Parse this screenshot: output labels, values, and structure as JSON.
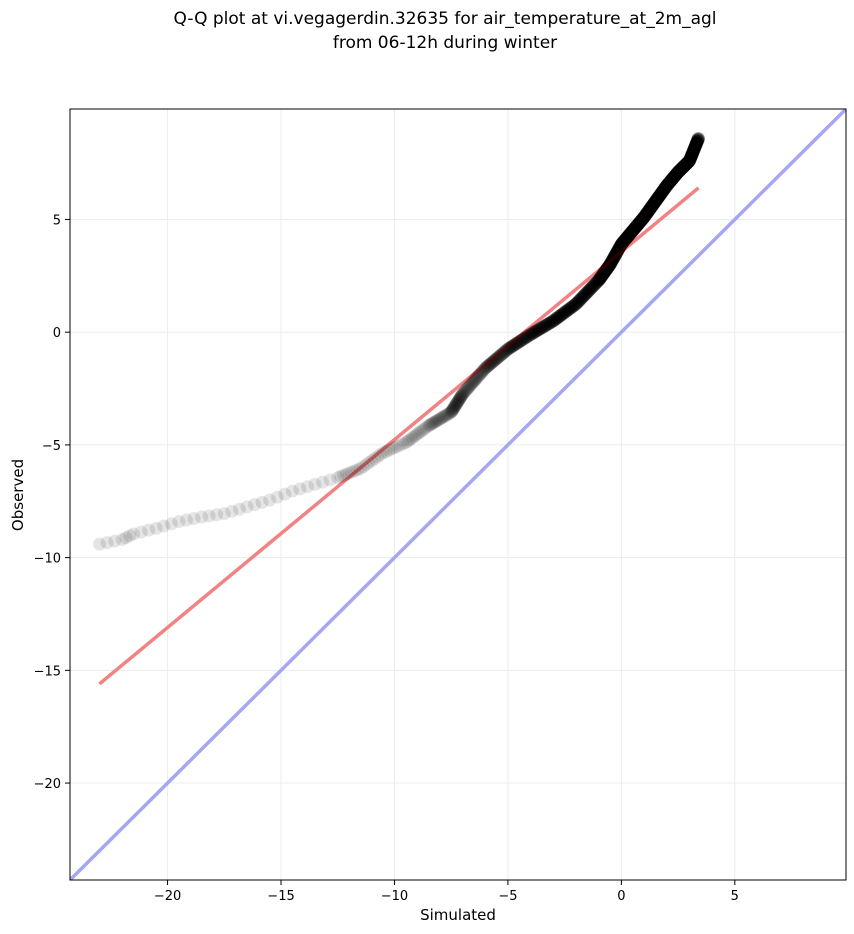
{
  "chart_data": {
    "type": "scatter",
    "title_lines": [
      "Q-Q plot at vi.vegagerdin.32635 for air_temperature_at_2m_agl",
      "from 06-12h during winter"
    ],
    "xlabel": "Simulated",
    "ylabel": "Observed",
    "xlim": [
      -24.3,
      9.9
    ],
    "ylim": [
      -24.3,
      9.9
    ],
    "xticks": [
      -20,
      -15,
      -10,
      -5,
      0,
      5
    ],
    "yticks": [
      -20,
      -15,
      -10,
      -5,
      0,
      5
    ],
    "xtick_labels": [
      "−20",
      "−15",
      "−10",
      "−5",
      "0",
      "5"
    ],
    "ytick_labels": [
      "−20",
      "−15",
      "−10",
      "−5",
      "0",
      "5"
    ],
    "grid": true,
    "series": [
      {
        "kind": "quantile-points",
        "color": "#000000",
        "anchors": [
          [
            -23.0,
            -9.4
          ],
          [
            -22.0,
            -9.2
          ],
          [
            -21.5,
            -8.95
          ],
          [
            -20.5,
            -8.7
          ],
          [
            -19.5,
            -8.4
          ],
          [
            -18.5,
            -8.2
          ],
          [
            -17.5,
            -8.05
          ],
          [
            -16.5,
            -7.75
          ],
          [
            -15.5,
            -7.45
          ],
          [
            -14.5,
            -7.05
          ],
          [
            -13.5,
            -6.75
          ],
          [
            -12.5,
            -6.45
          ],
          [
            -11.5,
            -6.05
          ],
          [
            -10.5,
            -5.35
          ],
          [
            -9.5,
            -4.9
          ],
          [
            -8.5,
            -4.15
          ],
          [
            -7.5,
            -3.55
          ],
          [
            -7.0,
            -2.75
          ],
          [
            -6.0,
            -1.6
          ],
          [
            -5.0,
            -0.75
          ],
          [
            -4.0,
            -0.1
          ],
          [
            -3.0,
            0.5
          ],
          [
            -2.0,
            1.25
          ],
          [
            -1.0,
            2.3
          ],
          [
            -0.5,
            3.0
          ],
          [
            0.0,
            3.9
          ],
          [
            0.5,
            4.5
          ],
          [
            1.0,
            5.1
          ],
          [
            1.5,
            5.8
          ],
          [
            2.0,
            6.5
          ],
          [
            2.5,
            7.1
          ],
          [
            3.0,
            7.6
          ],
          [
            3.4,
            8.6
          ]
        ]
      },
      {
        "kind": "fit-line",
        "color": "#f5a0a0",
        "points": [
          [
            -23.0,
            -15.6
          ],
          [
            3.4,
            6.4
          ]
        ]
      },
      {
        "kind": "identity-line",
        "color": "#a6a6f5",
        "points": [
          [
            -24.3,
            -24.3
          ],
          [
            9.9,
            9.9
          ]
        ]
      }
    ]
  }
}
